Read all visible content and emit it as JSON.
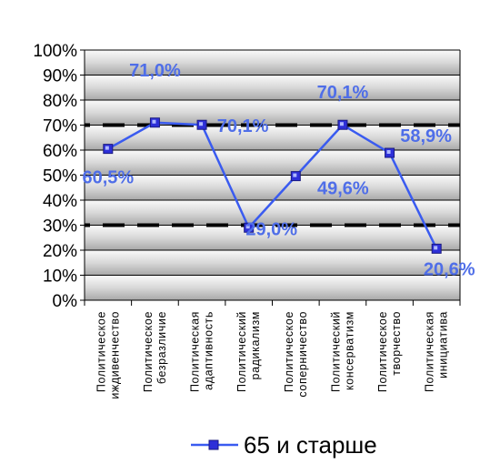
{
  "chart_data": {
    "type": "line",
    "title": "",
    "xlabel": "",
    "ylabel": "",
    "ylim": [
      0,
      100
    ],
    "yticks": [
      "0%",
      "10%",
      "20%",
      "30%",
      "40%",
      "50%",
      "60%",
      "70%",
      "80%",
      "90%",
      "100%"
    ],
    "categories": [
      [
        "Политическое",
        "иждивенчество"
      ],
      [
        "Политическое",
        "безразличие"
      ],
      [
        "Политическая",
        "адаптивность"
      ],
      [
        "Политический",
        "радикализм"
      ],
      [
        "Политическое",
        "соперничество"
      ],
      [
        "Политический",
        "консерватизм"
      ],
      [
        "Политическое",
        "творчество"
      ],
      [
        "Политическая",
        "инициатива"
      ]
    ],
    "series": [
      {
        "name": "65 и старше",
        "color": "#3A5BF0",
        "marker_fill": "#2D2FD8",
        "label_color": "#4F6EE8",
        "values": [
          60.5,
          71.0,
          70.1,
          29.0,
          49.6,
          70.1,
          58.9,
          20.6
        ],
        "data_labels": [
          "60,5%",
          "71,0%",
          "70,1%",
          "29,0%",
          "49,6%",
          "70,1%",
          "58,9%",
          "20,6%"
        ]
      }
    ],
    "reference_lines": [
      70,
      30
    ],
    "grid": true,
    "legend": "bottom"
  }
}
